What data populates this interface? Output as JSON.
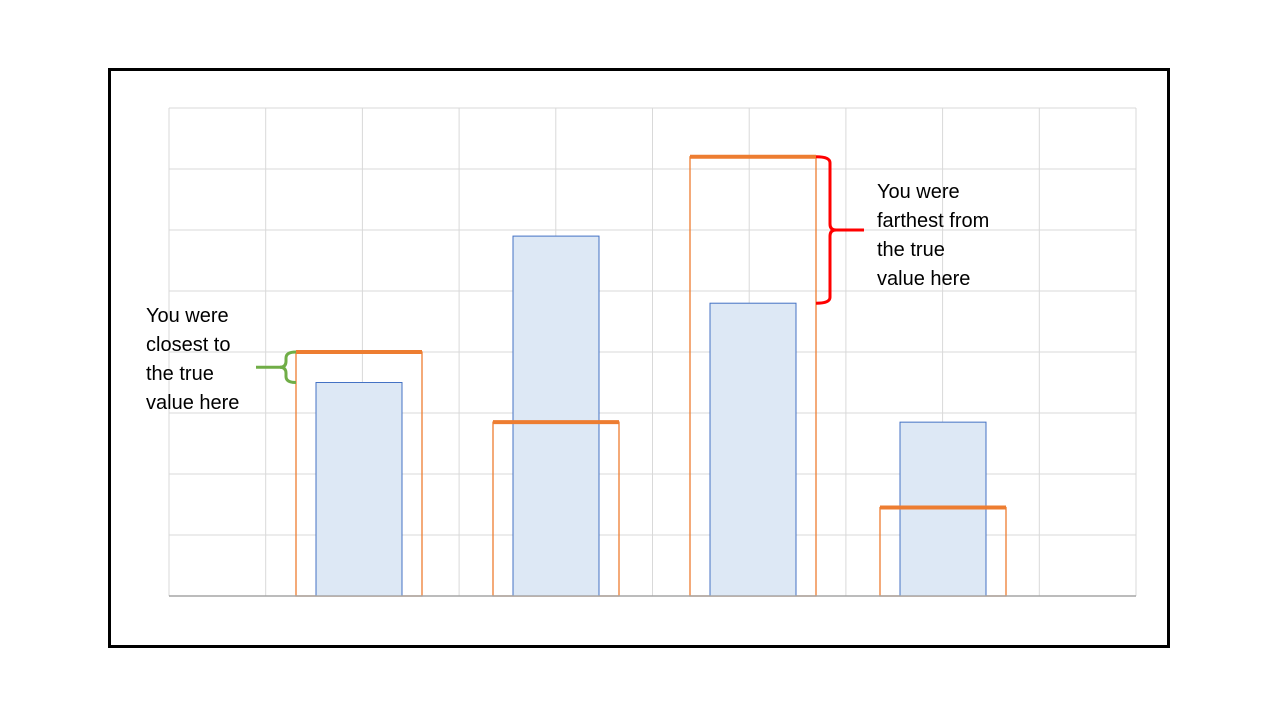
{
  "chart_data": {
    "type": "bar",
    "title": "",
    "xlabel": "",
    "ylabel": "",
    "ylim": [
      0,
      8
    ],
    "grid": true,
    "categories": [
      "",
      "",
      "",
      ""
    ],
    "series": [
      {
        "kind": "true",
        "color": "#4472c4",
        "fill": "#dde8f5",
        "values": [
          3.5,
          5.9,
          4.8,
          2.85
        ]
      },
      {
        "kind": "estimate",
        "color": "#ed7d31",
        "values": [
          4.0,
          2.85,
          7.2,
          1.45
        ]
      }
    ]
  },
  "annotations": {
    "closest": {
      "lines": [
        "You were",
        "closest to",
        "the true",
        "value here"
      ],
      "bracket_color": "#70ad47"
    },
    "farthest": {
      "lines": [
        "You were",
        "farthest from",
        "the true",
        "value here"
      ],
      "bracket_color": "#ff0000"
    }
  },
  "colors": {
    "grid": "#d9d9d9",
    "axis": "#a6a6a6",
    "frame": "#000000"
  }
}
